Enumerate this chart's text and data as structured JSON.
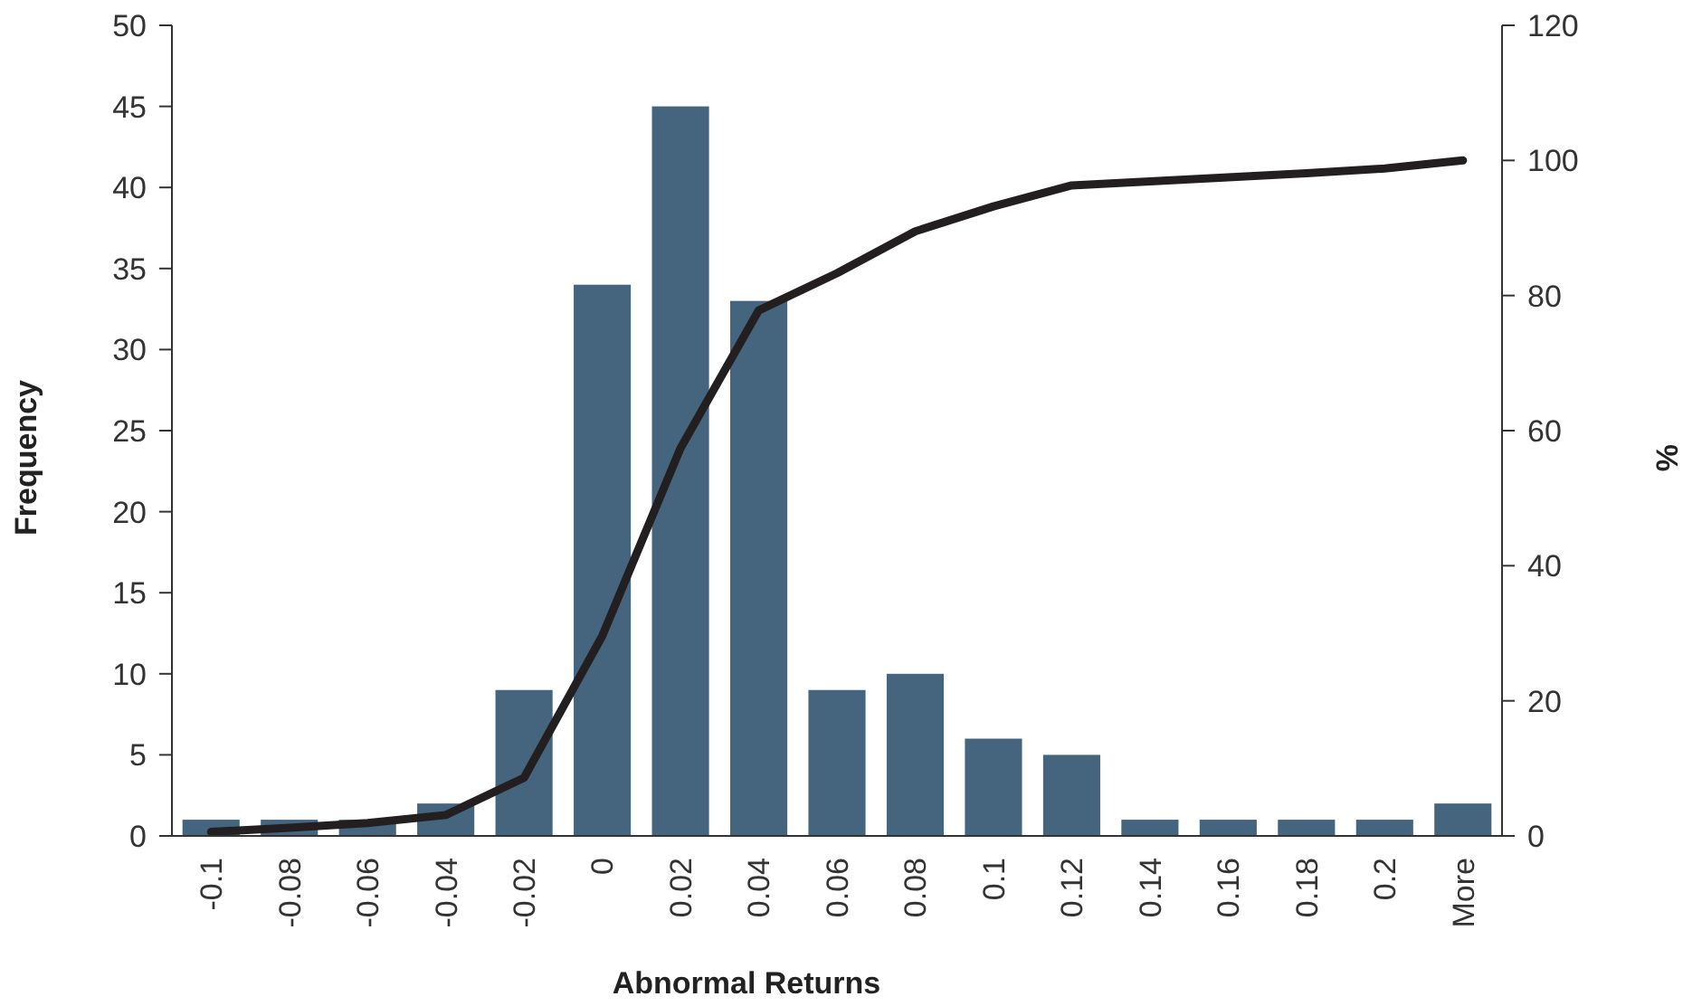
{
  "chart_data": {
    "type": "bar",
    "xlabel": "Abnormal Returns",
    "ylabel": "Frequency",
    "y2label": "%",
    "categories": [
      "-0.1",
      "-0.08",
      "-0.06",
      "-0.04",
      "-0.02",
      "0",
      "0.02",
      "0.04",
      "0.06",
      "0.08",
      "0.1",
      "0.12",
      "0.14",
      "0.16",
      "0.18",
      "0.2",
      "More"
    ],
    "series": [
      {
        "color": "#45657f",
        "values": [
          1,
          1,
          1,
          2,
          9,
          34,
          45,
          33,
          9,
          10,
          6,
          5,
          1,
          1,
          1,
          1,
          2
        ]
      },
      {
        "type": "line",
        "axis": "y2",
        "color": "#231f20",
        "values": [
          0.6,
          1.2,
          1.9,
          3.1,
          8.6,
          29.6,
          57.4,
          77.8,
          83.3,
          89.5,
          93.2,
          96.3,
          96.9,
          97.5,
          98.1,
          98.8,
          100
        ]
      }
    ],
    "ylim": [
      0,
      50
    ],
    "yticks": [
      0,
      5,
      10,
      15,
      20,
      25,
      30,
      35,
      40,
      45,
      50
    ],
    "y2lim": [
      0,
      120
    ],
    "y2ticks": [
      0,
      20,
      40,
      60,
      80,
      100,
      120
    ],
    "grid": false,
    "marker": "none",
    "line_style": "solid"
  }
}
